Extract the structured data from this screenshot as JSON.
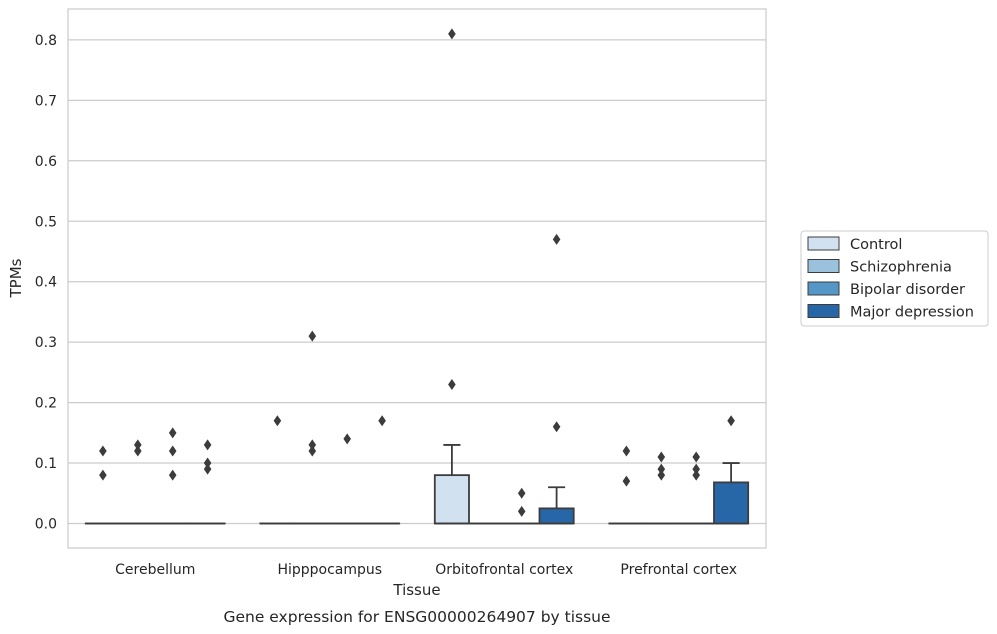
{
  "chart_data": {
    "type": "box",
    "title": "",
    "caption": "Gene expression for ENSG00000264907 by tissue",
    "xlabel": "Tissue",
    "ylabel": "TPMs",
    "ylim": [
      -0.04,
      0.852
    ],
    "yticks": [
      0.0,
      0.1,
      0.2,
      0.3,
      0.4,
      0.5,
      0.6,
      0.7,
      0.8
    ],
    "ytick_labels": [
      "0.0",
      "0.1",
      "0.2",
      "0.3",
      "0.4",
      "0.5",
      "0.6",
      "0.7",
      "0.8"
    ],
    "grid": "horizontal",
    "legend_position": "right",
    "categories": [
      "Cerebellum",
      "Hipppocampus",
      "Orbitofrontal cortex",
      "Prefrontal cortex"
    ],
    "series": [
      {
        "name": "Control",
        "color": "#d1e1f0",
        "boxes": [
          {
            "q1": 0,
            "median": 0,
            "q3": 0,
            "whisker_low": 0,
            "whisker_high": 0,
            "outliers": [
              0.12,
              0.08
            ]
          },
          {
            "q1": 0,
            "median": 0,
            "q3": 0,
            "whisker_low": 0,
            "whisker_high": 0,
            "outliers": [
              0.17
            ]
          },
          {
            "q1": 0,
            "median": 0,
            "q3": 0.08,
            "whisker_low": 0,
            "whisker_high": 0.13,
            "outliers": [
              0.81,
              0.23
            ]
          },
          {
            "q1": 0,
            "median": 0,
            "q3": 0,
            "whisker_low": 0,
            "whisker_high": 0,
            "outliers": [
              0.12,
              0.07
            ]
          }
        ]
      },
      {
        "name": "Schizophrenia",
        "color": "#9ac2dc",
        "boxes": [
          {
            "q1": 0,
            "median": 0,
            "q3": 0,
            "whisker_low": 0,
            "whisker_high": 0,
            "outliers": [
              0.13,
              0.12
            ]
          },
          {
            "q1": 0,
            "median": 0,
            "q3": 0,
            "whisker_low": 0,
            "whisker_high": 0,
            "outliers": [
              0.31,
              0.13,
              0.12
            ]
          },
          {
            "q1": 0,
            "median": 0,
            "q3": 0,
            "whisker_low": 0,
            "whisker_high": 0,
            "outliers": []
          },
          {
            "q1": 0,
            "median": 0,
            "q3": 0,
            "whisker_low": 0,
            "whisker_high": 0,
            "outliers": [
              0.11,
              0.09,
              0.08
            ]
          }
        ]
      },
      {
        "name": "Bipolar disorder",
        "color": "#5496c6",
        "boxes": [
          {
            "q1": 0,
            "median": 0,
            "q3": 0,
            "whisker_low": 0,
            "whisker_high": 0,
            "outliers": [
              0.15,
              0.12,
              0.08
            ]
          },
          {
            "q1": 0,
            "median": 0,
            "q3": 0,
            "whisker_low": 0,
            "whisker_high": 0,
            "outliers": [
              0.14
            ]
          },
          {
            "q1": 0,
            "median": 0,
            "q3": 0,
            "whisker_low": 0,
            "whisker_high": 0,
            "outliers": [
              0.05,
              0.02
            ]
          },
          {
            "q1": 0,
            "median": 0,
            "q3": 0,
            "whisker_low": 0,
            "whisker_high": 0,
            "outliers": [
              0.11,
              0.09,
              0.08
            ]
          }
        ]
      },
      {
        "name": "Major depression",
        "color": "#2766a7",
        "boxes": [
          {
            "q1": 0,
            "median": 0,
            "q3": 0,
            "whisker_low": 0,
            "whisker_high": 0,
            "outliers": [
              0.13,
              0.1,
              0.09
            ]
          },
          {
            "q1": 0,
            "median": 0,
            "q3": 0,
            "whisker_low": 0,
            "whisker_high": 0,
            "outliers": [
              0.17
            ]
          },
          {
            "q1": 0,
            "median": 0,
            "q3": 0.025,
            "whisker_low": 0,
            "whisker_high": 0.06,
            "outliers": [
              0.47,
              0.16
            ]
          },
          {
            "q1": 0,
            "median": 0,
            "q3": 0.068,
            "whisker_low": 0,
            "whisker_high": 0.1,
            "outliers": [
              0.17
            ]
          }
        ]
      }
    ]
  }
}
